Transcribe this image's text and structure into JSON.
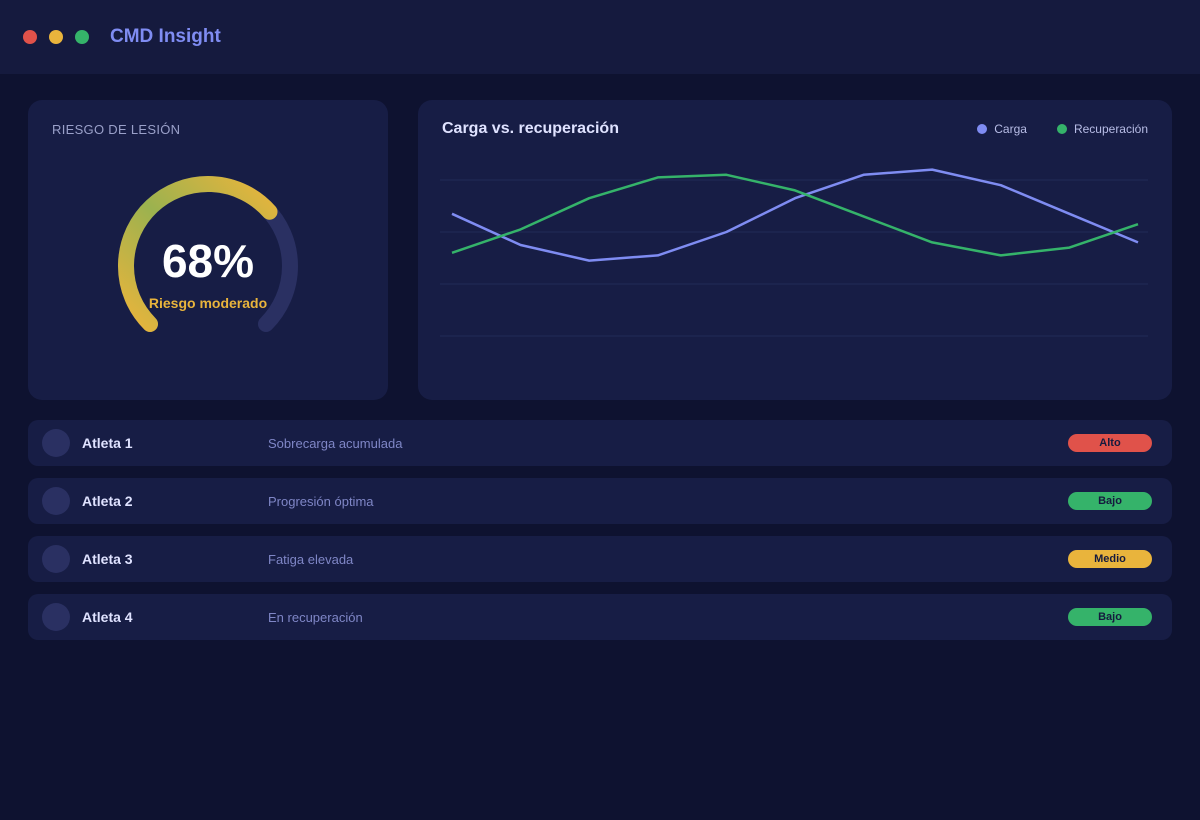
{
  "window": {
    "title": "CMD Insight",
    "controls": [
      {
        "name": "close",
        "color": "#e0524a"
      },
      {
        "name": "minimize",
        "color": "#e9b43c"
      },
      {
        "name": "maximize",
        "color": "#35b36a"
      }
    ]
  },
  "gauge": {
    "label": "RIESGO DE LESIÓN",
    "value_text": "68%",
    "value": 68,
    "status": "Riesgo moderado",
    "colors": {
      "start": "#e9b43c",
      "middle": "#9bb24f",
      "end": "#e9b43c",
      "track": "#2a3062"
    }
  },
  "chart": {
    "title": "Carga vs. recuperación",
    "legend": [
      {
        "label": "Carga",
        "color": "#7f8cf2"
      },
      {
        "label": "Recuperación",
        "color": "#35b36a"
      }
    ]
  },
  "chart_data": {
    "type": "line",
    "title": "Carga vs. recuperación",
    "x": [
      1,
      2,
      3,
      4,
      5,
      6,
      7,
      8,
      9,
      10,
      11
    ],
    "ylim": [
      0,
      100
    ],
    "grid": true,
    "legend_position": "top-right",
    "series": [
      {
        "name": "Carga",
        "color": "#7f8cf2",
        "values": [
          67,
          55,
          49,
          51,
          60,
          73,
          82,
          84,
          78,
          67,
          56
        ]
      },
      {
        "name": "Recuperación",
        "color": "#35b36a",
        "values": [
          52,
          61,
          73,
          81,
          82,
          76,
          66,
          56,
          51,
          54,
          63
        ]
      }
    ]
  },
  "athletes": [
    {
      "name": "Atleta 1",
      "note": "Sobrecarga acumulada",
      "risk": "Alto",
      "color": "#e0524a"
    },
    {
      "name": "Atleta 2",
      "note": "Progresión óptima",
      "risk": "Bajo",
      "color": "#35b36a"
    },
    {
      "name": "Atleta 3",
      "note": "Fatiga elevada",
      "risk": "Medio",
      "color": "#e9b43c"
    },
    {
      "name": "Atleta 4",
      "note": "En recuperación",
      "risk": "Bajo",
      "color": "#35b36a"
    }
  ]
}
